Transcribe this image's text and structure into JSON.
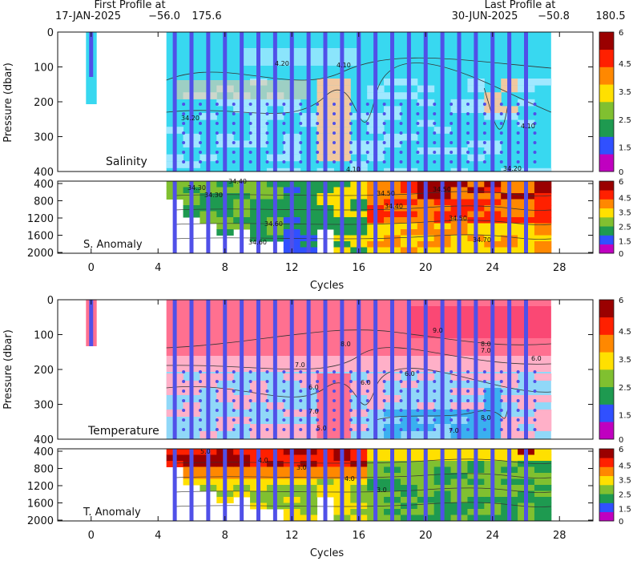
{
  "header": {
    "first_title": "First Profile at",
    "first_date": "17-JAN-2025",
    "first_lat": "−56.0",
    "first_lon": "175.6",
    "last_title": "Last Profile at",
    "last_date": "30-JUN-2025",
    "last_lat": "−50.8",
    "last_lon": "180.5"
  },
  "chart_data": [
    {
      "type": "heatmap",
      "title": "Salinity",
      "ylabel": "Pressure (dbar)",
      "ylim": [
        0,
        400
      ],
      "xlim": [
        -2,
        30
      ],
      "y_ticks": [
        "0",
        "100",
        "200",
        "300",
        "400"
      ],
      "x_ticks": [],
      "contours": [
        "4.20",
        "4.10",
        "34.20",
        "4.10",
        "34.20",
        "4.10"
      ],
      "colorbar_ticks": [
        "6",
        "4.5",
        "3.5",
        "2.5",
        "1.5",
        "0"
      ]
    },
    {
      "type": "heatmap",
      "title": "S. Anomaly",
      "ylim": [
        400,
        2000
      ],
      "xlim": [
        -2,
        30
      ],
      "y_ticks": [
        "400",
        "800",
        "1200",
        "1600",
        "2000"
      ],
      "x_ticks": [
        "0",
        "4",
        "8",
        "12",
        "16",
        "20",
        "24",
        "28"
      ],
      "xlabel": "Cycles",
      "contours": [
        "34.30",
        "34.40",
        "34.50",
        "34.60",
        "34.50",
        "34.30",
        "34.40",
        "34.50",
        "34.60",
        "34.70"
      ],
      "colorbar_ticks": [
        "6",
        "4.5",
        "3.5",
        "2.5",
        "1.5",
        "0"
      ]
    },
    {
      "type": "heatmap",
      "title": "Temperature",
      "ylabel": "Pressure (dbar)",
      "ylim": [
        0,
        400
      ],
      "xlim": [
        -2,
        30
      ],
      "y_ticks": [
        "0",
        "100",
        "200",
        "300",
        "400"
      ],
      "x_ticks": [],
      "contours": [
        "7.0",
        "7.0",
        "8.0",
        "6.0",
        "6.0",
        "7.0",
        "8.0",
        "6.0",
        "5.0",
        "6.0",
        "7.0",
        "8.0",
        "9.0"
      ],
      "colorbar_ticks": [
        "6",
        "4.5",
        "3.5",
        "2.5",
        "1.5",
        "0"
      ]
    },
    {
      "type": "heatmap",
      "title": "T. Anomaly",
      "ylim": [
        400,
        2000
      ],
      "xlim": [
        -2,
        30
      ],
      "y_ticks": [
        "400",
        "800",
        "1200",
        "1600",
        "2000"
      ],
      "x_ticks": [
        "0",
        "4",
        "8",
        "12",
        "16",
        "20",
        "24",
        "28"
      ],
      "xlabel": "Cycles",
      "contours": [
        "5.0",
        "4.0",
        "3.0",
        "4.0",
        "3.0"
      ],
      "colorbar_ticks": [
        "6",
        "4.5",
        "3.5",
        "2.5",
        "1.5",
        "0"
      ]
    }
  ],
  "profile_cycles": [
    0,
    5,
    6,
    7,
    8,
    9,
    10,
    11,
    12,
    13,
    14,
    15,
    16,
    17,
    18,
    19,
    20,
    21,
    22,
    23,
    24,
    25,
    26
  ],
  "colorbar_colors": [
    "#c000c0",
    "#3050ff",
    "#1e9a50",
    "#80c030",
    "#ffe000",
    "#ff8800",
    "#ff2000",
    "#9a0000"
  ],
  "field_colors": {
    "salinity_base": "#38d8f0",
    "salinity_light": "#a0e8ff",
    "salinity_warm": "#f0c8a0",
    "temperature_top": "#ff7090",
    "temperature_mid": "#ffb0c8",
    "temperature_low": "#90d8f8",
    "temperature_deep": "#3ab0f0",
    "profile_line": "#5050e8"
  }
}
